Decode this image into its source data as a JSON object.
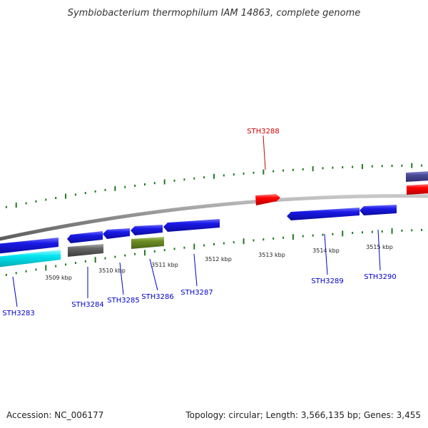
{
  "title": "Symbiobacterium thermophilum IAM 14863, complete genome",
  "accession": "Accession: NC_006177",
  "topology": "Topology: circular; Length: 3,566,135 bp; Genes: 3,455",
  "colors": {
    "backbone": "#8a8a8a",
    "tick": "#1f7a1f",
    "cds": "#1a1ae6",
    "highlight": "#ff0000",
    "cyan": "#00e5f0",
    "gray": "#666666",
    "olive": "#6b8e23",
    "slate": "#4b4b9a"
  },
  "scale": {
    "unit": "kbp",
    "labels": [
      "3509 kbp",
      "3510 kbp",
      "3511 kbp",
      "3512 kbp",
      "3513 kbp",
      "3514 kbp",
      "3515 kbp"
    ]
  },
  "genes": [
    {
      "id": "STH3283",
      "color_key": "cds"
    },
    {
      "id": "STH3284",
      "color_key": "cds"
    },
    {
      "id": "STH3285",
      "color_key": "cds"
    },
    {
      "id": "STH3286",
      "color_key": "cds"
    },
    {
      "id": "STH3287",
      "color_key": "cds"
    },
    {
      "id": "STH3288",
      "color_key": "highlight"
    },
    {
      "id": "STH3289",
      "color_key": "cds"
    },
    {
      "id": "STH3290",
      "color_key": "cds"
    }
  ]
}
